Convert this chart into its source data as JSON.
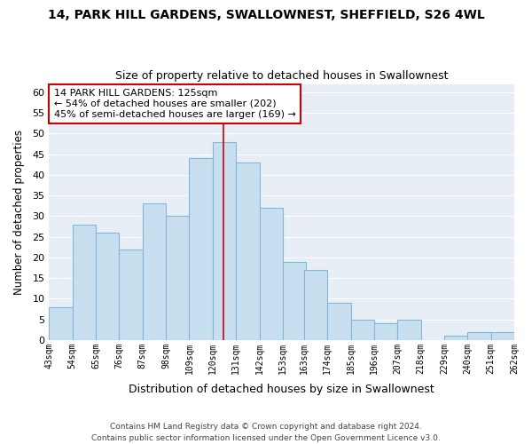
{
  "title": "14, PARK HILL GARDENS, SWALLOWNEST, SHEFFIELD, S26 4WL",
  "subtitle": "Size of property relative to detached houses in Swallownest",
  "xlabel": "Distribution of detached houses by size in Swallownest",
  "ylabel": "Number of detached properties",
  "bins": [
    43,
    54,
    65,
    76,
    87,
    98,
    109,
    120,
    131,
    142,
    153,
    163,
    174,
    185,
    196,
    207,
    218,
    229,
    240,
    251,
    262
  ],
  "values": [
    8,
    28,
    26,
    22,
    33,
    30,
    44,
    48,
    43,
    32,
    19,
    17,
    9,
    5,
    4,
    5,
    0,
    1,
    2,
    2
  ],
  "bar_color": "#c8dff0",
  "bar_edge_color": "#7fb8d8",
  "property_size": 125,
  "vline_color": "#cc0000",
  "annotation_line1": "14 PARK HILL GARDENS: 125sqm",
  "annotation_line2": "← 54% of detached houses are smaller (202)",
  "annotation_line3": "45% of semi-detached houses are larger (169) →",
  "annotation_box_color": "#ffffff",
  "annotation_box_edge": "#cc0000",
  "ylim": [
    0,
    62
  ],
  "yticks": [
    0,
    5,
    10,
    15,
    20,
    25,
    30,
    35,
    40,
    45,
    50,
    55,
    60
  ],
  "tick_labels": [
    "43sqm",
    "54sqm",
    "65sqm",
    "76sqm",
    "87sqm",
    "98sqm",
    "109sqm",
    "120sqm",
    "131sqm",
    "142sqm",
    "153sqm",
    "163sqm",
    "174sqm",
    "185sqm",
    "196sqm",
    "207sqm",
    "218sqm",
    "229sqm",
    "240sqm",
    "251sqm",
    "262sqm"
  ],
  "footer_line1": "Contains HM Land Registry data © Crown copyright and database right 2024.",
  "footer_line2": "Contains public sector information licensed under the Open Government Licence v3.0.",
  "fig_bg": "#ffffff",
  "plot_bg": "#e8eef5",
  "grid_color": "#ffffff"
}
